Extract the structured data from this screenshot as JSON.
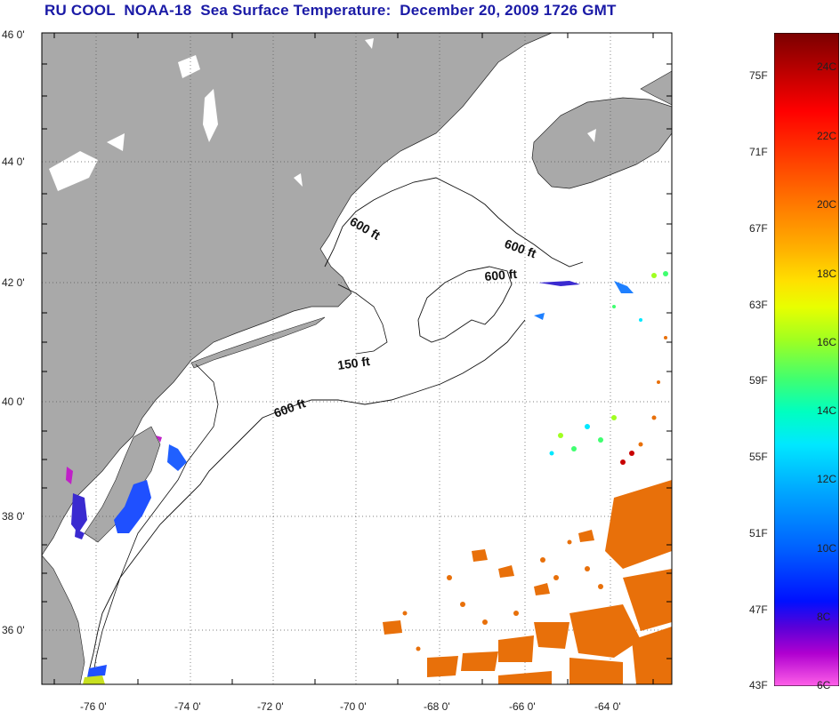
{
  "title": "RU COOL  NOAA-18  Sea Surface Temperature:  December 20, 2009 1726 GMT",
  "lat_labels": [
    "46 0'",
    "44 0'",
    "42 0'",
    "40 0'",
    "38 0'",
    "36 0'"
  ],
  "lon_labels": [
    "-76 0'",
    "-74 0'",
    "-72 0'",
    "-70 0'",
    "-68 0'",
    "-66 0'",
    "-64 0'"
  ],
  "contour_labels": [
    {
      "id": "c1",
      "text": "600 ft"
    },
    {
      "id": "c2",
      "text": "600 ft"
    },
    {
      "id": "c3",
      "text": "600 ft"
    },
    {
      "id": "c4",
      "text": "150 ft"
    },
    {
      "id": "c5",
      "text": "600 ft"
    }
  ],
  "colorbar": {
    "f_labels": [
      "75F",
      "71F",
      "67F",
      "63F",
      "59F",
      "55F",
      "51F",
      "47F",
      "43F"
    ],
    "c_labels": [
      "24C",
      "22C",
      "20C",
      "18C",
      "16C",
      "14C",
      "12C",
      "10C",
      "8C",
      "6C"
    ],
    "gradient": [
      "#7a0000",
      "#c80000",
      "#ff0000",
      "#ff4400",
      "#ff7f00",
      "#ffb000",
      "#ffe000",
      "#e8ff00",
      "#a0ff20",
      "#40ff70",
      "#00ffc0",
      "#00e8ff",
      "#00a8ff",
      "#0060ff",
      "#0010ff",
      "#5a00d8",
      "#b000d0",
      "#ff30e0",
      "#ff60e8"
    ]
  },
  "colors": {
    "land": "#a9a9a9",
    "ocean": "#ffffff",
    "title": "#1a1aa6",
    "warm_sst": "#e8700a",
    "cool_sst": "#1f50ff"
  }
}
